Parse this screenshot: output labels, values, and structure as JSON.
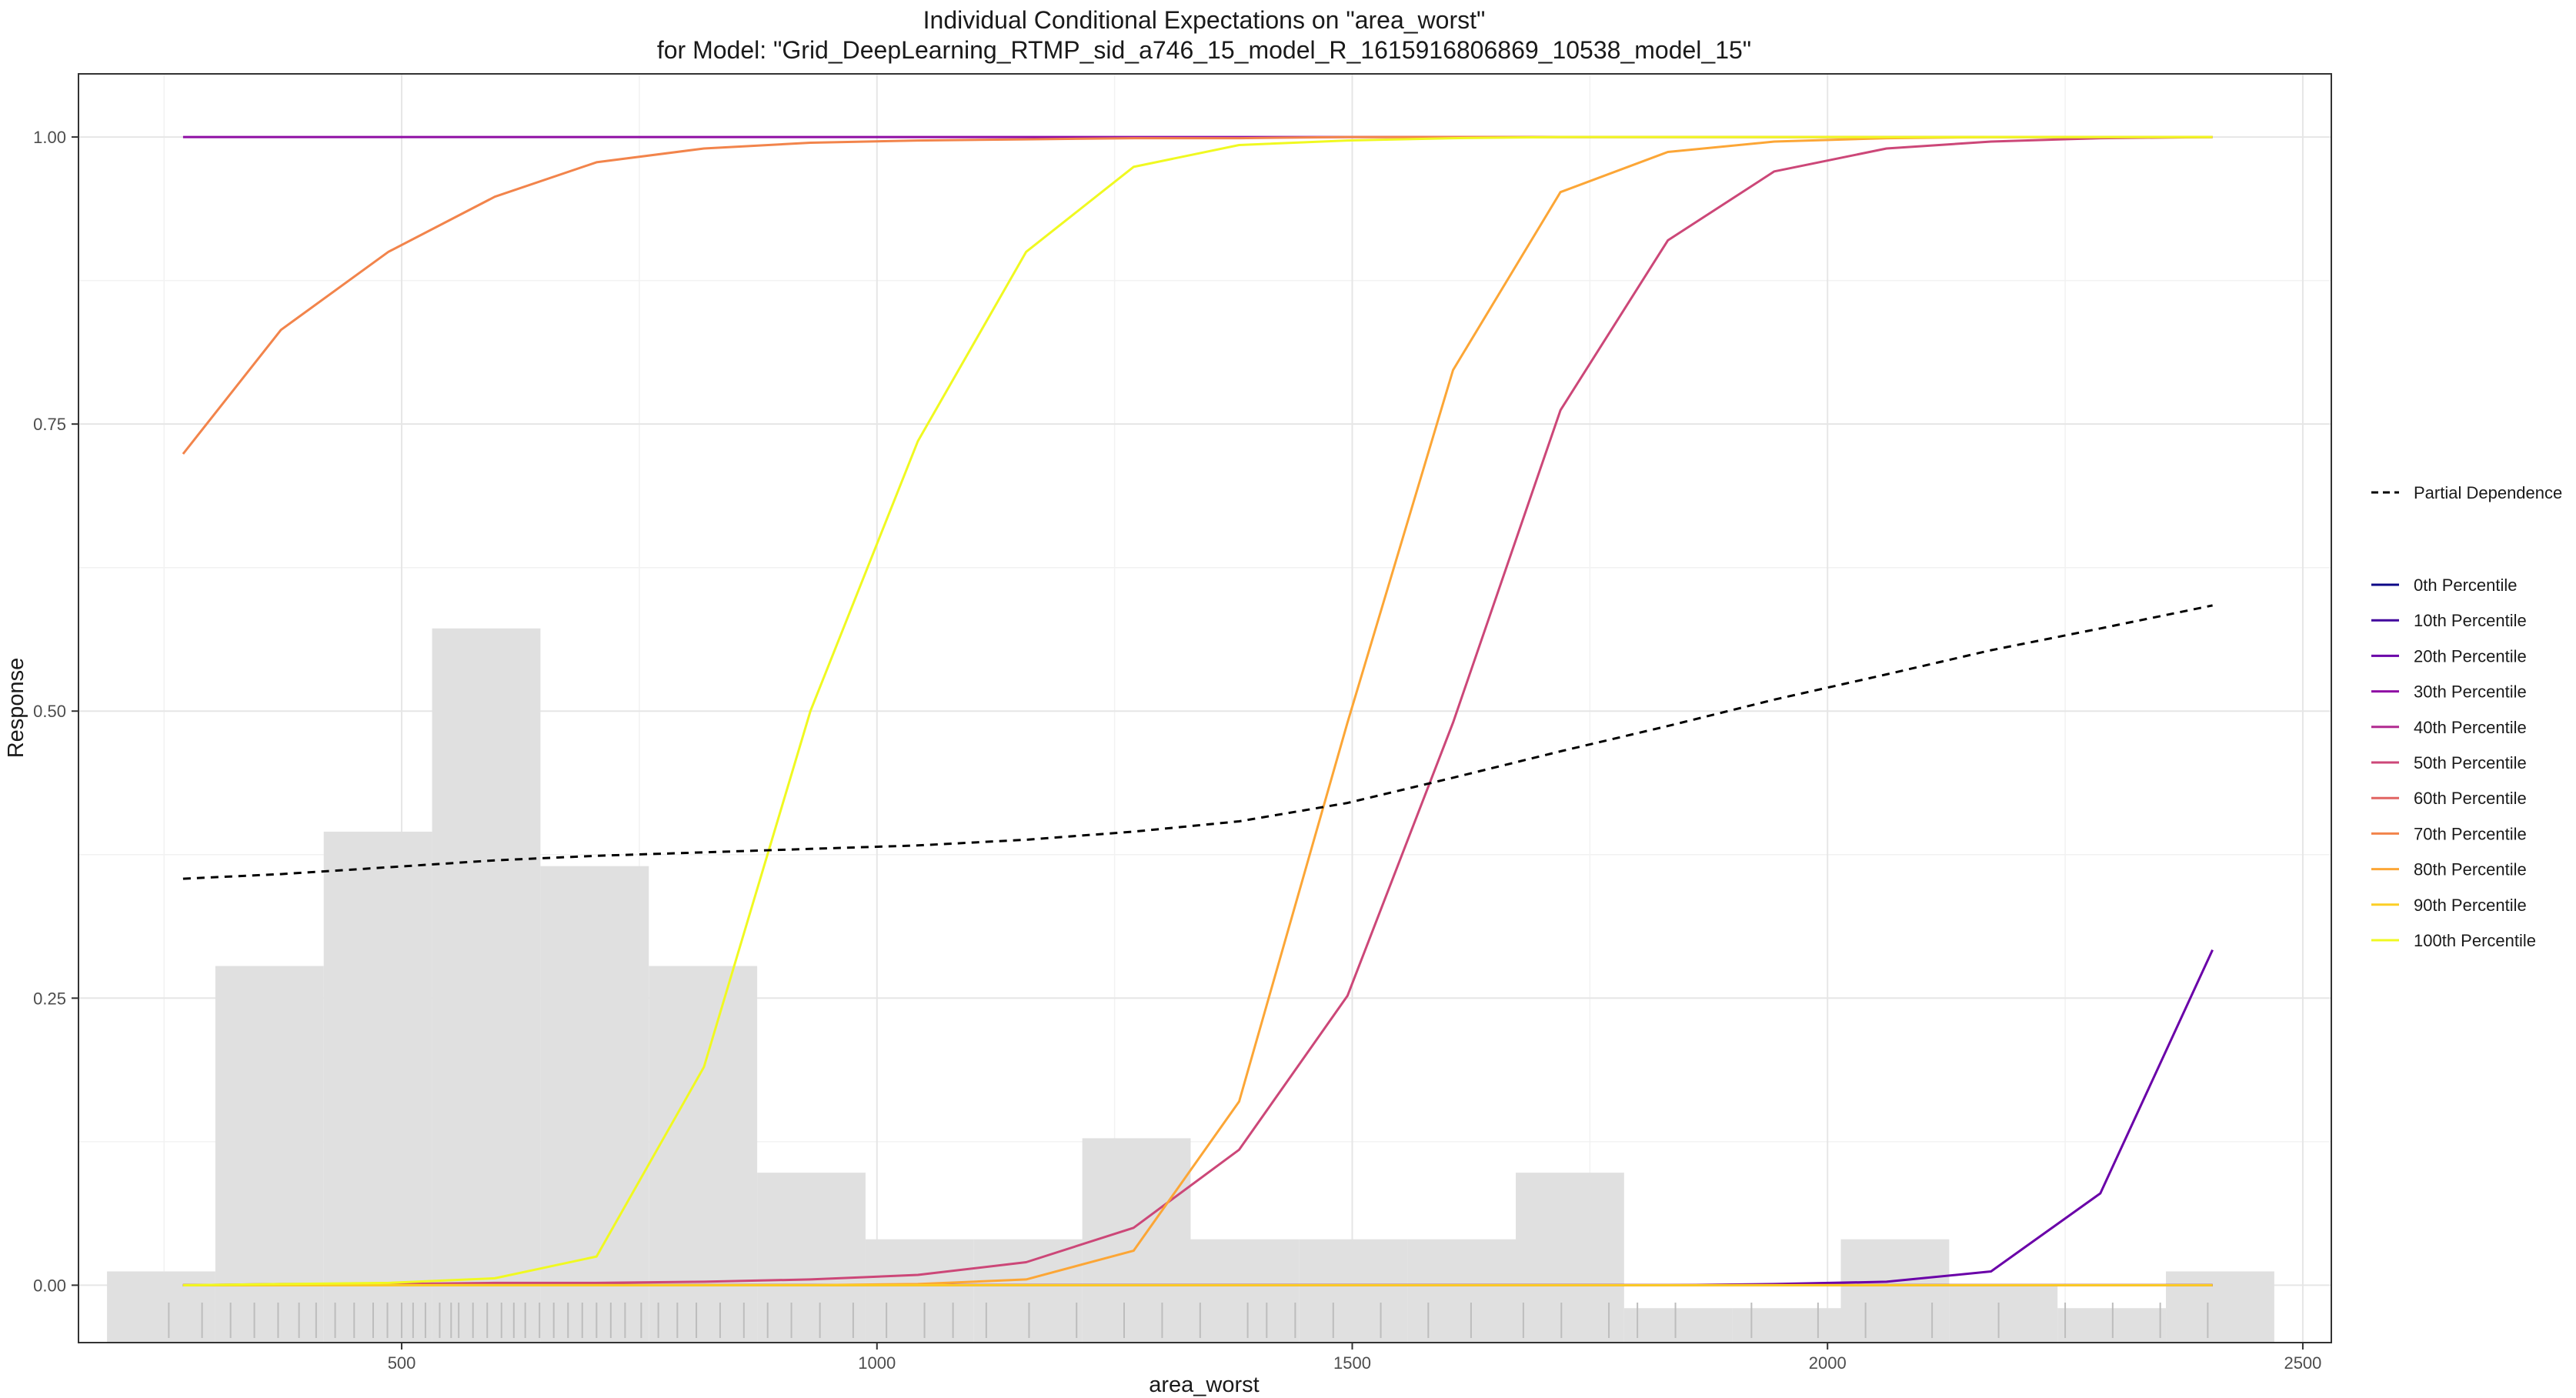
{
  "chart_data": {
    "type": "line",
    "title": "Individual Conditional Expectations on \"area_worst\"",
    "subtitle": "for Model: \"Grid_DeepLearning_RTMP_sid_a746_15_model_R_1615916806869_10538_model_15\"",
    "xlabel": "area_worst",
    "ylabel": "Response",
    "xlim": [
      160,
      2530
    ],
    "ylim": [
      -0.05,
      1.055
    ],
    "x_ticks": [
      500,
      1000,
      1500,
      2000,
      2500
    ],
    "y_ticks": [
      0.0,
      0.25,
      0.5,
      0.75,
      1.0
    ],
    "x_tick_labels": [
      "500",
      "1000",
      "1500",
      "2000",
      "2500"
    ],
    "y_tick_labels": [
      "0.00",
      "0.25",
      "0.50",
      "0.75",
      "1.00"
    ],
    "grid": true,
    "legend_position": "right",
    "x": [
      270,
      373,
      486,
      598,
      705,
      818,
      930,
      1043,
      1157,
      1270,
      1381,
      1495,
      1606,
      1719,
      1832,
      1944,
      2062,
      2172,
      2287,
      2405
    ],
    "histogram": {
      "bin_edges": [
        190,
        304,
        418,
        532,
        646,
        760,
        874,
        988,
        1102,
        1216,
        1330,
        1444,
        1558,
        1672,
        1786,
        1900,
        2014,
        2128,
        2242,
        2356,
        2470
      ],
      "heights": [
        0.012,
        0.278,
        0.395,
        0.572,
        0.365,
        0.278,
        0.098,
        0.04,
        0.04,
        0.128,
        0.04,
        0.04,
        0.04,
        0.098,
        -0.02,
        -0.02,
        0.04,
        0.0,
        -0.02,
        0.012
      ],
      "color": "#e0e0e0"
    },
    "rug_x": [
      255,
      290,
      320,
      345,
      370,
      392,
      410,
      430,
      450,
      470,
      485,
      500,
      512,
      525,
      540,
      552,
      560,
      575,
      590,
      605,
      618,
      630,
      645,
      660,
      675,
      690,
      705,
      720,
      735,
      752,
      770,
      790,
      810,
      835,
      860,
      885,
      910,
      940,
      975,
      1010,
      1050,
      1080,
      1115,
      1160,
      1210,
      1260,
      1300,
      1340,
      1390,
      1410,
      1440,
      1480,
      1530,
      1580,
      1625,
      1680,
      1720,
      1770,
      1800,
      1840,
      1920,
      1990,
      2040,
      2110,
      2180,
      2250,
      2300,
      2350,
      2400
    ],
    "series": [
      {
        "name": "Partial Dependence",
        "color": "#000000",
        "dashed": true,
        "values": [
          0.354,
          0.358,
          0.364,
          0.37,
          0.374,
          0.377,
          0.38,
          0.383,
          0.388,
          0.395,
          0.404,
          0.42,
          0.442,
          0.465,
          0.487,
          0.51,
          0.532,
          0.553,
          0.572,
          0.592
        ]
      },
      {
        "name": "0th Percentile",
        "color": "#0d0887",
        "values": [
          0.0,
          0.0,
          0.0,
          0.0,
          0.0,
          0.0,
          0.0,
          0.0,
          0.0,
          0.0,
          0.0,
          0.0,
          0.0,
          0.0,
          0.0,
          0.0,
          0.0,
          0.0,
          0.0,
          0.0
        ]
      },
      {
        "name": "10th Percentile",
        "color": "#41049d",
        "values": [
          0.0,
          0.0,
          0.0,
          0.0,
          0.0,
          0.0,
          0.0,
          0.0,
          0.0,
          0.0,
          0.0,
          0.0,
          0.0,
          0.0,
          0.0,
          0.0,
          0.0,
          0.0,
          0.0,
          0.0
        ]
      },
      {
        "name": "20th Percentile",
        "color": "#6a00a8",
        "values": [
          0.0,
          0.0,
          0.0,
          0.0,
          0.0,
          0.0,
          0.0,
          0.0,
          0.0,
          0.0,
          0.0,
          0.0,
          0.0,
          0.0,
          0.0,
          0.001,
          0.003,
          0.012,
          0.08,
          0.292
        ]
      },
      {
        "name": "30th Percentile",
        "color": "#8f0da4",
        "values": [
          1.0,
          1.0,
          1.0,
          1.0,
          1.0,
          1.0,
          1.0,
          1.0,
          1.0,
          1.0,
          1.0,
          1.0,
          1.0,
          1.0,
          1.0,
          1.0,
          1.0,
          1.0,
          1.0,
          1.0
        ]
      },
      {
        "name": "40th Percentile",
        "color": "#b12a90",
        "values": [
          0.0,
          0.0,
          0.0,
          0.0,
          0.0,
          0.0,
          0.0,
          0.0,
          0.0,
          0.0,
          0.0,
          0.0,
          0.0,
          0.0,
          0.0,
          0.0,
          0.0,
          0.0,
          0.0,
          0.0
        ]
      },
      {
        "name": "50th Percentile",
        "color": "#cc4778",
        "values": [
          0.0,
          0.001,
          0.001,
          0.002,
          0.002,
          0.003,
          0.005,
          0.009,
          0.02,
          0.05,
          0.118,
          0.252,
          0.49,
          0.762,
          0.91,
          0.97,
          0.99,
          0.996,
          0.999,
          1.0
        ]
      },
      {
        "name": "60th Percentile",
        "color": "#e16462",
        "values": [
          0.0,
          0.0,
          0.0,
          0.0,
          0.0,
          0.0,
          0.0,
          0.0,
          0.0,
          0.0,
          0.0,
          0.0,
          0.0,
          0.0,
          0.0,
          0.0,
          0.0,
          0.0,
          0.0,
          0.0
        ]
      },
      {
        "name": "70th Percentile",
        "color": "#f2844b",
        "values": [
          0.724,
          0.832,
          0.9,
          0.948,
          0.978,
          0.99,
          0.995,
          0.997,
          0.998,
          0.999,
          0.999,
          1.0,
          1.0,
          1.0,
          1.0,
          1.0,
          1.0,
          1.0,
          1.0,
          1.0
        ]
      },
      {
        "name": "80th Percentile",
        "color": "#fca636",
        "values": [
          0.0,
          0.0,
          0.0,
          0.0,
          0.0,
          0.0,
          0.0,
          0.001,
          0.005,
          0.03,
          0.16,
          0.49,
          0.797,
          0.952,
          0.987,
          0.996,
          0.999,
          1.0,
          1.0,
          1.0
        ]
      },
      {
        "name": "90th Percentile",
        "color": "#fcce25",
        "values": [
          0.0,
          0.0,
          0.0,
          0.0,
          0.0,
          0.0,
          0.0,
          0.0,
          0.0,
          0.0,
          0.0,
          0.0,
          0.0,
          0.0,
          0.0,
          0.0,
          0.0,
          0.0,
          0.0,
          0.0
        ]
      },
      {
        "name": "100th Percentile",
        "color": "#f0f921",
        "values": [
          0.0,
          0.001,
          0.002,
          0.006,
          0.025,
          0.19,
          0.5,
          0.735,
          0.9,
          0.974,
          0.993,
          0.997,
          0.999,
          1.0,
          1.0,
          1.0,
          1.0,
          1.0,
          1.0,
          1.0
        ]
      }
    ]
  }
}
